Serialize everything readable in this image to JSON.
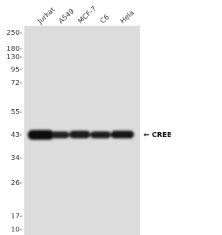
{
  "lanes": [
    "Jurkat",
    "A549",
    "MCF-7",
    "C6",
    "Hela"
  ],
  "markers": [
    "250-",
    "180-",
    "130-",
    "95-",
    "72-",
    "55-",
    "43-",
    "34-",
    "26-",
    "17-",
    "10-"
  ],
  "band_label": "← CREB"
}
